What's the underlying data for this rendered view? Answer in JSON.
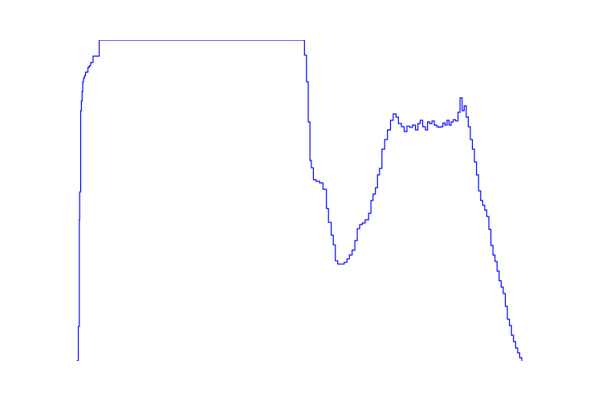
{
  "chart_data": {
    "type": "line",
    "title": "",
    "xlabel": "",
    "ylabel": "",
    "grid": false,
    "axes_visible": false,
    "line_color": "#0000ff",
    "xlim": [
      0,
      1
    ],
    "ylim": [
      0,
      1
    ],
    "series": [
      {
        "name": "",
        "x": [
          0.0,
          0.0046,
          0.0054,
          0.0069,
          0.0077,
          0.0092,
          0.01,
          0.0115,
          0.0131,
          0.0146,
          0.0162,
          0.0177,
          0.0192,
          0.0208,
          0.0231,
          0.0262,
          0.0292,
          0.0323,
          0.0377,
          0.0515,
          0.5085,
          0.5123,
          0.5169,
          0.5208,
          0.5246,
          0.5277,
          0.5323,
          0.5385,
          0.5462,
          0.5538,
          0.5615,
          0.5662,
          0.5723,
          0.5769,
          0.5815,
          0.5869,
          0.5931,
          0.6015,
          0.6077,
          0.6131,
          0.6192,
          0.6254,
          0.6308,
          0.6362,
          0.6423,
          0.6485,
          0.6562,
          0.6615,
          0.6662,
          0.6715,
          0.6762,
          0.6808,
          0.6862,
          0.6923,
          0.6985,
          0.7054,
          0.7115,
          0.7177,
          0.7231,
          0.73,
          0.7362,
          0.7423,
          0.7485,
          0.7546,
          0.7615,
          0.7669,
          0.7723,
          0.7777,
          0.7838,
          0.7885,
          0.7931,
          0.7985,
          0.8038,
          0.8092,
          0.8138,
          0.8185,
          0.8231,
          0.8277,
          0.8323,
          0.8369,
          0.8415,
          0.8462,
          0.8515,
          0.8569,
          0.8615,
          0.8662,
          0.8708,
          0.8754,
          0.88,
          0.8846,
          0.8892,
          0.8938,
          0.8985,
          0.9031,
          0.9077,
          0.9123,
          0.9169,
          0.9215,
          0.9262,
          0.9308,
          0.9354,
          0.94,
          0.9446,
          0.9492,
          0.9538,
          0.9585,
          0.9631,
          0.9677,
          0.9723,
          0.9769,
          0.9815,
          0.9862,
          0.9908,
          0.9954,
          1.0
        ],
        "y": [
          0.0,
          0.107,
          0.107,
          0.44,
          0.527,
          0.527,
          0.78,
          0.81,
          0.84,
          0.87,
          0.88,
          0.885,
          0.89,
          0.9,
          0.9,
          0.915,
          0.92,
          0.93,
          0.95,
          1.0,
          1.0,
          0.953,
          0.87,
          0.745,
          0.625,
          0.602,
          0.565,
          0.56,
          0.555,
          0.535,
          0.475,
          0.432,
          0.392,
          0.362,
          0.312,
          0.302,
          0.302,
          0.307,
          0.318,
          0.33,
          0.345,
          0.375,
          0.412,
          0.425,
          0.43,
          0.44,
          0.46,
          0.5,
          0.52,
          0.54,
          0.58,
          0.6,
          0.66,
          0.69,
          0.72,
          0.75,
          0.77,
          0.76,
          0.74,
          0.73,
          0.715,
          0.732,
          0.728,
          0.735,
          0.72,
          0.74,
          0.75,
          0.73,
          0.72,
          0.745,
          0.74,
          0.748,
          0.735,
          0.73,
          0.728,
          0.73,
          0.742,
          0.735,
          0.75,
          0.735,
          0.745,
          0.752,
          0.748,
          0.775,
          0.82,
          0.78,
          0.795,
          0.76,
          0.73,
          0.69,
          0.66,
          0.62,
          0.58,
          0.53,
          0.5,
          0.485,
          0.47,
          0.45,
          0.41,
          0.36,
          0.33,
          0.31,
          0.28,
          0.25,
          0.23,
          0.21,
          0.17,
          0.13,
          0.11,
          0.08,
          0.06,
          0.04,
          0.025,
          0.01,
          0.0
        ]
      }
    ]
  }
}
